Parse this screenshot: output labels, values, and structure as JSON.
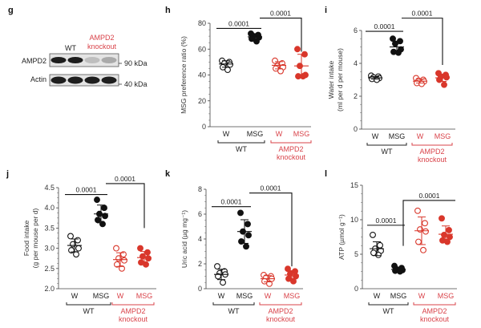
{
  "figure": {
    "colors": {
      "wt": "#111111",
      "ko": "#d9372b",
      "ko_label": "#d9434a"
    }
  },
  "western_blot": {
    "panel": "g",
    "group_labels": {
      "wt": "WT",
      "ko_line1": "AMPD2",
      "ko_line2": "knockout"
    },
    "rows": [
      {
        "protein": "AMPD2",
        "marker": "90 kDa",
        "band_intensity": [
          1.0,
          1.0,
          0.2,
          0.3
        ]
      },
      {
        "protein": "Actin",
        "marker": "40 kDa",
        "band_intensity": [
          1.0,
          1.0,
          1.0,
          1.0
        ]
      }
    ]
  },
  "chart_data": [
    {
      "panel": "h",
      "type": "scatter",
      "ylabel_lines": [
        "MSG preference ratio (%)"
      ],
      "ylim": [
        0,
        80
      ],
      "yticks": [
        0,
        20,
        40,
        60,
        80
      ],
      "ytick_labels": [
        "0",
        "20",
        "40",
        "60",
        "80"
      ],
      "categories": [
        "W",
        "MSG",
        "W",
        "MSG"
      ],
      "groups": [
        {
          "label": "WT",
          "color": "wt"
        },
        {
          "label_lines": [
            "AMPD2",
            "knockout"
          ],
          "color": "ko"
        }
      ],
      "series": [
        {
          "name": "WT W",
          "filled": false,
          "color": "wt",
          "points": [
            51,
            50,
            49,
            48,
            46,
            44
          ],
          "mean": 48.5,
          "sd": 2.5
        },
        {
          "name": "WT MSG",
          "filled": true,
          "color": "wt",
          "points": [
            72,
            71,
            70,
            69,
            68,
            66
          ],
          "mean": 69.5,
          "sd": 2.5
        },
        {
          "name": "KO W",
          "filled": false,
          "color": "ko",
          "points": [
            51,
            49,
            47,
            46,
            45,
            43
          ],
          "mean": 47.5,
          "sd": 2.8
        },
        {
          "name": "KO MSG",
          "filled": true,
          "color": "ko",
          "points": [
            60,
            56,
            47,
            40,
            39,
            39
          ],
          "mean": 47,
          "sd": 9
        }
      ],
      "annotations": [
        {
          "text": "0.0001",
          "from": 0,
          "to": 1,
          "y": 76,
          "drop_to": null
        },
        {
          "text": "0.0001",
          "from": 1,
          "to": 3,
          "y": 84,
          "drop_to": 58
        }
      ]
    },
    {
      "panel": "i",
      "type": "scatter",
      "ylabel_lines": [
        "Water intake",
        "(ml per d per mouse)"
      ],
      "ylim": [
        0,
        6
      ],
      "yticks": [
        0,
        2,
        4,
        6
      ],
      "ytick_labels": [
        "0",
        "2",
        "4",
        "6"
      ],
      "categories": [
        "W",
        "MSG",
        "W",
        "MSG"
      ],
      "groups": [
        {
          "label": "WT",
          "color": "wt"
        },
        {
          "label_lines": [
            "AMPD2",
            "knockout"
          ],
          "color": "ko"
        }
      ],
      "series": [
        {
          "name": "WT W",
          "filled": false,
          "color": "wt",
          "points": [
            3.25,
            3.2,
            3.15,
            3.1,
            3.05,
            3.0
          ],
          "mean": 3.12,
          "sd": 0.08
        },
        {
          "name": "WT MSG",
          "filled": true,
          "color": "wt",
          "points": [
            5.5,
            5.35,
            5.2,
            4.85,
            4.7,
            4.65
          ],
          "mean": 5.0,
          "sd": 0.3
        },
        {
          "name": "KO W",
          "filled": false,
          "color": "ko",
          "points": [
            3.1,
            3.0,
            2.95,
            2.9,
            2.8,
            2.75
          ],
          "mean": 2.92,
          "sd": 0.12
        },
        {
          "name": "KO MSG",
          "filled": true,
          "color": "ko",
          "points": [
            3.4,
            3.3,
            3.2,
            3.15,
            3.0,
            2.7
          ],
          "mean": 3.12,
          "sd": 0.22
        }
      ],
      "annotations": [
        {
          "text": "0.0001",
          "from": 0,
          "to": 1,
          "y": 5.95,
          "drop_to": null
        },
        {
          "text": "0.0001",
          "from": 1,
          "to": 3,
          "y": 6.75,
          "drop_to": 3.9
        }
      ]
    },
    {
      "panel": "j",
      "type": "scatter",
      "ylabel_lines": [
        "Food intake",
        "(g per mouse per d)"
      ],
      "ylim": [
        2.0,
        4.5
      ],
      "yticks": [
        2.0,
        2.5,
        3.0,
        3.5,
        4.0,
        4.5
      ],
      "ytick_labels": [
        "2.0",
        "2.5",
        "3.0",
        "3.5",
        "4.0",
        "4.5"
      ],
      "categories": [
        "W",
        "MSG",
        "W",
        "MSG"
      ],
      "groups": [
        {
          "label": "WT",
          "color": "wt"
        },
        {
          "label_lines": [
            "AMPD2",
            "knockout"
          ],
          "color": "ko"
        }
      ],
      "series": [
        {
          "name": "WT W",
          "filled": false,
          "color": "wt",
          "points": [
            3.3,
            3.2,
            3.1,
            3.0,
            2.95,
            2.85
          ],
          "mean": 3.07,
          "sd": 0.16
        },
        {
          "name": "WT MSG",
          "filled": true,
          "color": "wt",
          "points": [
            4.2,
            4.0,
            3.85,
            3.8,
            3.7,
            3.6
          ],
          "mean": 3.85,
          "sd": 0.22
        },
        {
          "name": "KO W",
          "filled": false,
          "color": "ko",
          "points": [
            3.0,
            2.85,
            2.75,
            2.7,
            2.6,
            2.5
          ],
          "mean": 2.72,
          "sd": 0.17
        },
        {
          "name": "KO MSG",
          "filled": true,
          "color": "ko",
          "points": [
            3.0,
            2.9,
            2.8,
            2.75,
            2.65,
            2.6
          ],
          "mean": 2.77,
          "sd": 0.15
        }
      ],
      "annotations": [
        {
          "text": "0.0001",
          "from": 0,
          "to": 1,
          "y": 4.33,
          "drop_to": null
        },
        {
          "text": "0.0001",
          "from": 1,
          "to": 3,
          "y": 4.6,
          "drop_to": 3.5
        }
      ]
    },
    {
      "panel": "k",
      "type": "scatter",
      "ylabel_lines": [
        "Uric acid (µg mg⁻¹)"
      ],
      "ylim": [
        0,
        8
      ],
      "yticks": [
        0,
        2,
        4,
        6,
        8
      ],
      "ytick_labels": [
        "0",
        "2",
        "4",
        "6",
        "8"
      ],
      "categories": [
        "W",
        "MSG",
        "W",
        "MSG"
      ],
      "groups": [
        {
          "label": "WT",
          "color": "wt"
        },
        {
          "label_lines": [
            "AMPD2",
            "knockout"
          ],
          "color": "ko"
        }
      ],
      "series": [
        {
          "name": "WT W",
          "filled": false,
          "color": "wt",
          "points": [
            1.8,
            1.4,
            1.25,
            1.15,
            1.0,
            0.5
          ],
          "mean": 1.15,
          "sd": 0.42
        },
        {
          "name": "WT MSG",
          "filled": true,
          "color": "wt",
          "points": [
            6.1,
            5.2,
            4.6,
            4.3,
            3.8,
            3.4
          ],
          "mean": 4.6,
          "sd": 0.95
        },
        {
          "name": "KO W",
          "filled": false,
          "color": "ko",
          "points": [
            1.1,
            1.0,
            0.9,
            0.8,
            0.6,
            0.4
          ],
          "mean": 0.8,
          "sd": 0.25
        },
        {
          "name": "KO MSG",
          "filled": true,
          "color": "ko",
          "points": [
            1.6,
            1.4,
            1.2,
            1.0,
            0.8,
            0.6
          ],
          "mean": 1.1,
          "sd": 0.35
        }
      ],
      "annotations": [
        {
          "text": "0.0001",
          "from": 0,
          "to": 1,
          "y": 6.6,
          "drop_to": null
        },
        {
          "text": "0.0001",
          "from": 1,
          "to": 3,
          "y": 7.7,
          "drop_to": 1.8
        }
      ]
    },
    {
      "panel": "l",
      "type": "scatter",
      "ylabel_lines": [
        "ATP (µmol g⁻¹)"
      ],
      "ylim": [
        0,
        15
      ],
      "yticks": [
        0,
        5,
        10,
        15
      ],
      "ytick_labels": [
        "0",
        "5",
        "10",
        "15"
      ],
      "categories": [
        "W",
        "MSG",
        "W",
        "MSG"
      ],
      "groups": [
        {
          "label": "WT",
          "color": "wt"
        },
        {
          "label_lines": [
            "AMPD2",
            "knockout"
          ],
          "color": "ko"
        }
      ],
      "series": [
        {
          "name": "WT W",
          "filled": false,
          "color": "wt",
          "points": [
            7.8,
            6.3,
            5.8,
            5.5,
            5.2,
            4.9
          ],
          "mean": 5.8,
          "sd": 1.0
        },
        {
          "name": "WT MSG",
          "filled": true,
          "color": "wt",
          "points": [
            3.3,
            3.0,
            2.8,
            2.7,
            2.6,
            2.5
          ],
          "mean": 2.8,
          "sd": 0.25
        },
        {
          "name": "KO W",
          "filled": false,
          "color": "ko",
          "points": [
            11.3,
            9.5,
            8.6,
            8.3,
            6.8,
            5.6
          ],
          "mean": 8.4,
          "sd": 2.0
        },
        {
          "name": "KO MSG",
          "filled": true,
          "color": "ko",
          "points": [
            10.2,
            8.5,
            7.8,
            7.5,
            7.0,
            6.8
          ],
          "mean": 7.9,
          "sd": 1.2
        }
      ],
      "annotations": [
        {
          "text": "0.0001",
          "from": 0,
          "to": 1,
          "y": 9.2,
          "drop_to": null
        },
        {
          "text": "0.0001",
          "from": 1,
          "to": 3,
          "y": 12.8,
          "drop_to": 6.2,
          "drop_at_start": true
        }
      ]
    }
  ]
}
